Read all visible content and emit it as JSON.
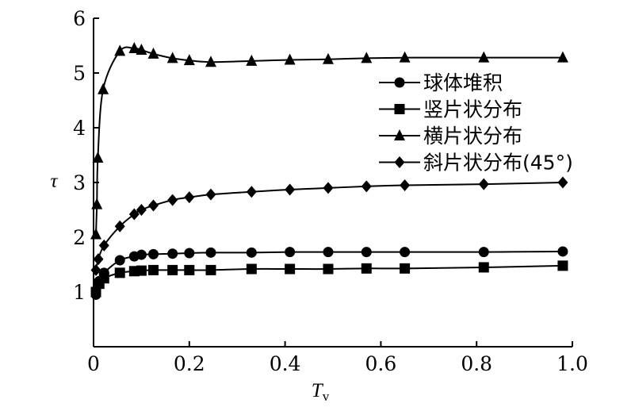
{
  "chart_data": {
    "type": "line",
    "xlabel": "T",
    "xlabel_sub": "v",
    "ylabel": "τ",
    "xlim": [
      0,
      1.0
    ],
    "ylim": [
      0,
      6
    ],
    "xticks": [
      0,
      0.2,
      0.4,
      0.6,
      0.8,
      1.0
    ],
    "xtick_labels": [
      "0",
      "0.2",
      "0.4",
      "0.6",
      "0.8",
      "1.0"
    ],
    "yticks": [
      1,
      2,
      3,
      4,
      5,
      6
    ],
    "ytick_labels": [
      "1",
      "2",
      "3",
      "4",
      "5",
      "6"
    ],
    "legend_position": "right",
    "series": [
      {
        "name": "球体堆积",
        "marker": "circle",
        "x": [
          0.005,
          0.012,
          0.022,
          0.055,
          0.085,
          0.1,
          0.125,
          0.165,
          0.2,
          0.245,
          0.33,
          0.41,
          0.49,
          0.57,
          0.65,
          0.815,
          0.98
        ],
        "y": [
          0.95,
          1.2,
          1.35,
          1.58,
          1.65,
          1.68,
          1.69,
          1.7,
          1.71,
          1.72,
          1.72,
          1.73,
          1.73,
          1.73,
          1.73,
          1.73,
          1.74
        ]
      },
      {
        "name": "竖片状分布",
        "marker": "square",
        "x": [
          0.005,
          0.012,
          0.022,
          0.055,
          0.085,
          0.1,
          0.125,
          0.165,
          0.2,
          0.245,
          0.33,
          0.41,
          0.49,
          0.57,
          0.65,
          0.815,
          0.98
        ],
        "y": [
          1.0,
          1.15,
          1.25,
          1.35,
          1.38,
          1.39,
          1.4,
          1.4,
          1.4,
          1.4,
          1.42,
          1.42,
          1.42,
          1.43,
          1.43,
          1.45,
          1.48
        ]
      },
      {
        "name": "横片状分布",
        "marker": "triangle",
        "x": [
          0.005,
          0.007,
          0.009,
          0.02,
          0.055,
          0.085,
          0.1,
          0.125,
          0.165,
          0.2,
          0.245,
          0.33,
          0.41,
          0.49,
          0.57,
          0.65,
          0.815,
          0.98
        ],
        "y": [
          2.05,
          2.6,
          3.45,
          4.7,
          5.4,
          5.45,
          5.42,
          5.35,
          5.27,
          5.23,
          5.2,
          5.22,
          5.24,
          5.25,
          5.27,
          5.28,
          5.28,
          5.28
        ]
      },
      {
        "name": "斜片状分布(45°)",
        "marker": "diamond",
        "x": [
          0.005,
          0.01,
          0.022,
          0.055,
          0.085,
          0.1,
          0.125,
          0.165,
          0.2,
          0.245,
          0.33,
          0.41,
          0.49,
          0.57,
          0.65,
          0.815,
          0.98
        ],
        "y": [
          1.4,
          1.6,
          1.85,
          2.2,
          2.42,
          2.5,
          2.58,
          2.68,
          2.73,
          2.78,
          2.83,
          2.87,
          2.9,
          2.93,
          2.95,
          2.97,
          3.0
        ]
      }
    ]
  }
}
